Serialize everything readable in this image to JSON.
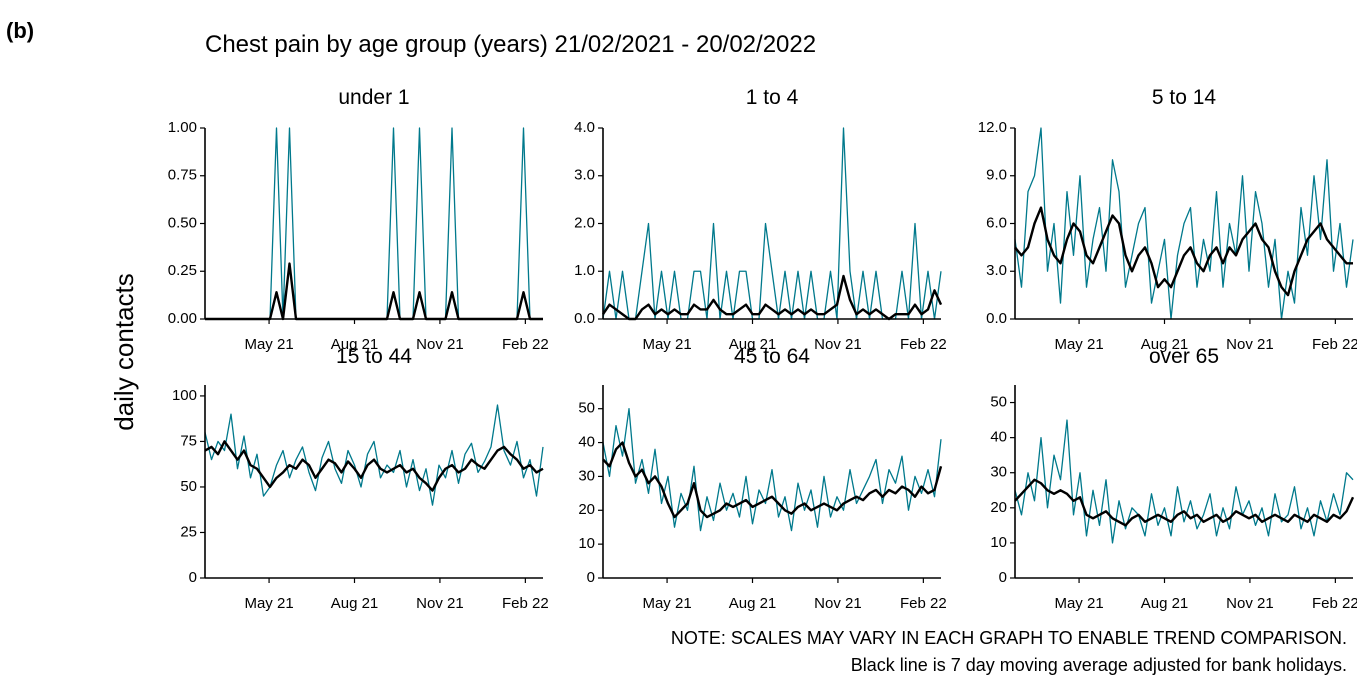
{
  "figure": {
    "label": "(b)",
    "title": "Chest pain by age group (years) 21/02/2021 - 20/02/2022",
    "ylabel": "daily contacts",
    "notes": [
      "NOTE: SCALES MAY VARY IN EACH GRAPH TO ENABLE TREND COMPARISON.",
      "Black line is 7 day moving average adjusted for bank holidays."
    ]
  },
  "chart_data": [
    {
      "type": "line",
      "title": "under 1",
      "x": [
        0,
        7,
        14,
        21,
        28,
        35,
        42,
        49,
        56,
        63,
        70,
        77,
        84,
        91,
        98,
        105,
        112,
        119,
        126,
        133,
        140,
        147,
        154,
        161,
        168,
        175,
        182,
        189,
        196,
        203,
        210,
        217,
        224,
        231,
        238,
        245,
        252,
        259,
        266,
        273,
        280,
        287,
        294,
        301,
        308,
        315,
        322,
        329,
        336,
        343,
        350,
        357,
        364
      ],
      "xlim": [
        0,
        364
      ],
      "xticks": [
        {
          "value": 69,
          "label": "May 21"
        },
        {
          "value": 161,
          "label": "Aug 21"
        },
        {
          "value": 253,
          "label": "Nov 21"
        },
        {
          "value": 345,
          "label": "Feb 22"
        }
      ],
      "ylim": [
        0,
        1
      ],
      "yticks": [
        {
          "value": 0,
          "label": "0.00"
        },
        {
          "value": 0.25,
          "label": "0.25"
        },
        {
          "value": 0.5,
          "label": "0.50"
        },
        {
          "value": 0.75,
          "label": "0.75"
        },
        {
          "value": 1,
          "label": "1.00"
        }
      ],
      "series": [
        {
          "color": "#00798c",
          "values": [
            0,
            0,
            0,
            0,
            0,
            0,
            0,
            0,
            0,
            0,
            0,
            1,
            0,
            1,
            0,
            0,
            0,
            0,
            0,
            0,
            0,
            0,
            0,
            0,
            0,
            0,
            0,
            0,
            0,
            1,
            0,
            0,
            0,
            1,
            0,
            0,
            0,
            0,
            1,
            0,
            0,
            0,
            0,
            0,
            0,
            0,
            0,
            0,
            0,
            1,
            0,
            0,
            0
          ]
        },
        {
          "color": "#000000",
          "values": [
            0,
            0,
            0,
            0,
            0,
            0,
            0,
            0,
            0,
            0,
            0,
            0.14,
            0,
            0.29,
            0,
            0,
            0,
            0,
            0,
            0,
            0,
            0,
            0,
            0,
            0,
            0,
            0,
            0,
            0,
            0.14,
            0,
            0,
            0,
            0.14,
            0,
            0,
            0,
            0,
            0.14,
            0,
            0,
            0,
            0,
            0,
            0,
            0,
            0,
            0,
            0,
            0.14,
            0,
            0,
            0
          ]
        }
      ]
    },
    {
      "type": "line",
      "title": "1 to 4",
      "x": [
        0,
        7,
        14,
        21,
        28,
        35,
        42,
        49,
        56,
        63,
        70,
        77,
        84,
        91,
        98,
        105,
        112,
        119,
        126,
        133,
        140,
        147,
        154,
        161,
        168,
        175,
        182,
        189,
        196,
        203,
        210,
        217,
        224,
        231,
        238,
        245,
        252,
        259,
        266,
        273,
        280,
        287,
        294,
        301,
        308,
        315,
        322,
        329,
        336,
        343,
        350,
        357,
        364
      ],
      "xlim": [
        0,
        364
      ],
      "xticks": [
        {
          "value": 69,
          "label": "May 21"
        },
        {
          "value": 161,
          "label": "Aug 21"
        },
        {
          "value": 253,
          "label": "Nov 21"
        },
        {
          "value": 345,
          "label": "Feb 22"
        }
      ],
      "ylim": [
        0,
        4
      ],
      "yticks": [
        {
          "value": 0,
          "label": "0.0"
        },
        {
          "value": 1,
          "label": "1.0"
        },
        {
          "value": 2,
          "label": "2.0"
        },
        {
          "value": 3,
          "label": "3.0"
        },
        {
          "value": 4,
          "label": "4.0"
        }
      ],
      "series": [
        {
          "color": "#00798c",
          "values": [
            0,
            1,
            0,
            1,
            0,
            0,
            1,
            2,
            0,
            1,
            0,
            1,
            0,
            0,
            1,
            1,
            0,
            2,
            0,
            1,
            0,
            1,
            1,
            0,
            0,
            2,
            1,
            0,
            1,
            0,
            1,
            0,
            1,
            0,
            0,
            1,
            0,
            4,
            1,
            0,
            1,
            0,
            1,
            0,
            0,
            0,
            1,
            0,
            2,
            0,
            1,
            0,
            1
          ]
        },
        {
          "color": "#000000",
          "values": [
            0.1,
            0.3,
            0.2,
            0.1,
            0.0,
            0.0,
            0.2,
            0.3,
            0.1,
            0.2,
            0.1,
            0.2,
            0.1,
            0.1,
            0.3,
            0.2,
            0.2,
            0.4,
            0.2,
            0.1,
            0.1,
            0.2,
            0.3,
            0.1,
            0.1,
            0.3,
            0.2,
            0.1,
            0.2,
            0.1,
            0.2,
            0.1,
            0.2,
            0.1,
            0.1,
            0.2,
            0.3,
            0.9,
            0.4,
            0.1,
            0.2,
            0.1,
            0.2,
            0.1,
            0.0,
            0.1,
            0.1,
            0.1,
            0.3,
            0.1,
            0.2,
            0.6,
            0.3
          ]
        }
      ]
    },
    {
      "type": "line",
      "title": "5 to 14",
      "x": [
        0,
        7,
        14,
        21,
        28,
        35,
        42,
        49,
        56,
        63,
        70,
        77,
        84,
        91,
        98,
        105,
        112,
        119,
        126,
        133,
        140,
        147,
        154,
        161,
        168,
        175,
        182,
        189,
        196,
        203,
        210,
        217,
        224,
        231,
        238,
        245,
        252,
        259,
        266,
        273,
        280,
        287,
        294,
        301,
        308,
        315,
        322,
        329,
        336,
        343,
        350,
        357,
        364
      ],
      "xlim": [
        0,
        364
      ],
      "xticks": [
        {
          "value": 69,
          "label": "May 21"
        },
        {
          "value": 161,
          "label": "Aug 21"
        },
        {
          "value": 253,
          "label": "Nov 21"
        },
        {
          "value": 345,
          "label": "Feb 22"
        }
      ],
      "ylim": [
        0,
        12
      ],
      "yticks": [
        {
          "value": 0,
          "label": "0.0"
        },
        {
          "value": 3,
          "label": "3.0"
        },
        {
          "value": 6,
          "label": "6.0"
        },
        {
          "value": 9,
          "label": "9.0"
        },
        {
          "value": 12,
          "label": "12.0"
        }
      ],
      "series": [
        {
          "color": "#00798c",
          "values": [
            5,
            2,
            8,
            9,
            12,
            3,
            6,
            1,
            8,
            4,
            9,
            2,
            5,
            7,
            3,
            10,
            8,
            2,
            4,
            6,
            7,
            1,
            3,
            5,
            0,
            4,
            6,
            7,
            2,
            5,
            3,
            8,
            2,
            6,
            4,
            9,
            3,
            8,
            6,
            2,
            5,
            0,
            3,
            1,
            7,
            4,
            9,
            5,
            10,
            3,
            6,
            2,
            5
          ]
        },
        {
          "color": "#000000",
          "values": [
            4.5,
            4.0,
            4.5,
            6.0,
            7.0,
            5.0,
            4.0,
            3.5,
            5.0,
            6.0,
            5.5,
            4.0,
            3.5,
            4.5,
            5.5,
            6.5,
            6.0,
            4.0,
            3.0,
            4.0,
            4.5,
            3.5,
            2.0,
            2.5,
            2.0,
            3.0,
            4.0,
            4.5,
            3.5,
            3.0,
            4.0,
            4.5,
            3.5,
            4.5,
            4.0,
            5.0,
            5.5,
            6.0,
            5.0,
            4.5,
            3.0,
            2.0,
            1.5,
            3.0,
            4.0,
            5.0,
            5.5,
            6.0,
            5.0,
            4.5,
            4.0,
            3.5,
            3.5
          ]
        }
      ]
    },
    {
      "type": "line",
      "title": "15 to 44",
      "x": [
        0,
        7,
        14,
        21,
        28,
        35,
        42,
        49,
        56,
        63,
        70,
        77,
        84,
        91,
        98,
        105,
        112,
        119,
        126,
        133,
        140,
        147,
        154,
        161,
        168,
        175,
        182,
        189,
        196,
        203,
        210,
        217,
        224,
        231,
        238,
        245,
        252,
        259,
        266,
        273,
        280,
        287,
        294,
        301,
        308,
        315,
        322,
        329,
        336,
        343,
        350,
        357,
        364
      ],
      "xlim": [
        0,
        364
      ],
      "xticks": [
        {
          "value": 69,
          "label": "May 21"
        },
        {
          "value": 161,
          "label": "Aug 21"
        },
        {
          "value": 253,
          "label": "Nov 21"
        },
        {
          "value": 345,
          "label": "Feb 22"
        }
      ],
      "ylim": [
        0,
        106
      ],
      "yticks": [
        0,
        25,
        50,
        75,
        100
      ],
      "series": [
        {
          "color": "#00798c",
          "values": [
            80,
            65,
            75,
            70,
            90,
            60,
            78,
            55,
            68,
            45,
            50,
            62,
            70,
            55,
            65,
            72,
            58,
            48,
            66,
            75,
            60,
            52,
            70,
            62,
            50,
            68,
            75,
            55,
            62,
            58,
            70,
            50,
            65,
            48,
            60,
            40,
            62,
            55,
            70,
            52,
            68,
            74,
            58,
            64,
            72,
            95,
            70,
            62,
            75,
            55,
            65,
            45,
            72
          ]
        },
        {
          "color": "#000000",
          "values": [
            70,
            72,
            68,
            75,
            70,
            65,
            70,
            62,
            60,
            55,
            50,
            55,
            58,
            62,
            60,
            65,
            62,
            55,
            60,
            65,
            63,
            58,
            64,
            60,
            55,
            62,
            65,
            60,
            58,
            60,
            62,
            58,
            60,
            55,
            52,
            48,
            55,
            60,
            62,
            58,
            60,
            65,
            62,
            60,
            65,
            70,
            72,
            68,
            65,
            60,
            62,
            58,
            60
          ]
        }
      ]
    },
    {
      "type": "line",
      "title": "45 to 64",
      "x": [
        0,
        7,
        14,
        21,
        28,
        35,
        42,
        49,
        56,
        63,
        70,
        77,
        84,
        91,
        98,
        105,
        112,
        119,
        126,
        133,
        140,
        147,
        154,
        161,
        168,
        175,
        182,
        189,
        196,
        203,
        210,
        217,
        224,
        231,
        238,
        245,
        252,
        259,
        266,
        273,
        280,
        287,
        294,
        301,
        308,
        315,
        322,
        329,
        336,
        343,
        350,
        357,
        364
      ],
      "xlim": [
        0,
        364
      ],
      "xticks": [
        {
          "value": 69,
          "label": "May 21"
        },
        {
          "value": 161,
          "label": "Aug 21"
        },
        {
          "value": 253,
          "label": "Nov 21"
        },
        {
          "value": 345,
          "label": "Feb 22"
        }
      ],
      "ylim": [
        0,
        57
      ],
      "yticks": [
        0,
        10,
        20,
        30,
        40,
        50
      ],
      "series": [
        {
          "color": "#00798c",
          "values": [
            40,
            30,
            45,
            36,
            50,
            28,
            35,
            25,
            38,
            22,
            30,
            15,
            25,
            20,
            33,
            14,
            24,
            17,
            28,
            20,
            25,
            18,
            30,
            16,
            26,
            22,
            32,
            18,
            24,
            14,
            28,
            20,
            26,
            15,
            30,
            18,
            24,
            20,
            32,
            22,
            26,
            30,
            35,
            22,
            32,
            28,
            36,
            20,
            30,
            25,
            32,
            24,
            41
          ]
        },
        {
          "color": "#000000",
          "values": [
            35,
            33,
            38,
            40,
            34,
            30,
            32,
            28,
            30,
            27,
            22,
            18,
            20,
            22,
            28,
            20,
            18,
            19,
            20,
            22,
            21,
            22,
            23,
            21,
            22,
            23,
            24,
            22,
            20,
            19,
            21,
            22,
            20,
            21,
            22,
            21,
            20,
            22,
            23,
            24,
            23,
            25,
            26,
            24,
            26,
            25,
            27,
            26,
            24,
            27,
            25,
            26,
            33
          ]
        }
      ]
    },
    {
      "type": "line",
      "title": "over 65",
      "x": [
        0,
        7,
        14,
        21,
        28,
        35,
        42,
        49,
        56,
        63,
        70,
        77,
        84,
        91,
        98,
        105,
        112,
        119,
        126,
        133,
        140,
        147,
        154,
        161,
        168,
        175,
        182,
        189,
        196,
        203,
        210,
        217,
        224,
        231,
        238,
        245,
        252,
        259,
        266,
        273,
        280,
        287,
        294,
        301,
        308,
        315,
        322,
        329,
        336,
        343,
        350,
        357,
        364
      ],
      "xlim": [
        0,
        364
      ],
      "xticks": [
        {
          "value": 69,
          "label": "May 21"
        },
        {
          "value": 161,
          "label": "Aug 21"
        },
        {
          "value": 253,
          "label": "Nov 21"
        },
        {
          "value": 345,
          "label": "Feb 22"
        }
      ],
      "ylim": [
        0,
        55
      ],
      "yticks": [
        0,
        10,
        20,
        30,
        40,
        50
      ],
      "series": [
        {
          "color": "#00798c",
          "values": [
            25,
            18,
            30,
            22,
            40,
            20,
            35,
            28,
            45,
            18,
            30,
            12,
            25,
            15,
            28,
            10,
            22,
            14,
            20,
            18,
            12,
            24,
            15,
            20,
            12,
            26,
            16,
            22,
            14,
            18,
            24,
            12,
            20,
            14,
            26,
            18,
            22,
            15,
            20,
            12,
            24,
            16,
            18,
            26,
            14,
            20,
            12,
            22,
            16,
            24,
            18,
            30,
            28
          ]
        },
        {
          "color": "#000000",
          "values": [
            22,
            24,
            26,
            28,
            27,
            25,
            24,
            25,
            24,
            22,
            23,
            18,
            17,
            18,
            19,
            17,
            16,
            15,
            17,
            18,
            16,
            17,
            18,
            17,
            16,
            18,
            19,
            17,
            18,
            16,
            17,
            18,
            16,
            17,
            19,
            18,
            17,
            18,
            16,
            17,
            18,
            17,
            16,
            18,
            17,
            16,
            18,
            17,
            16,
            18,
            17,
            19,
            23
          ]
        }
      ]
    }
  ]
}
